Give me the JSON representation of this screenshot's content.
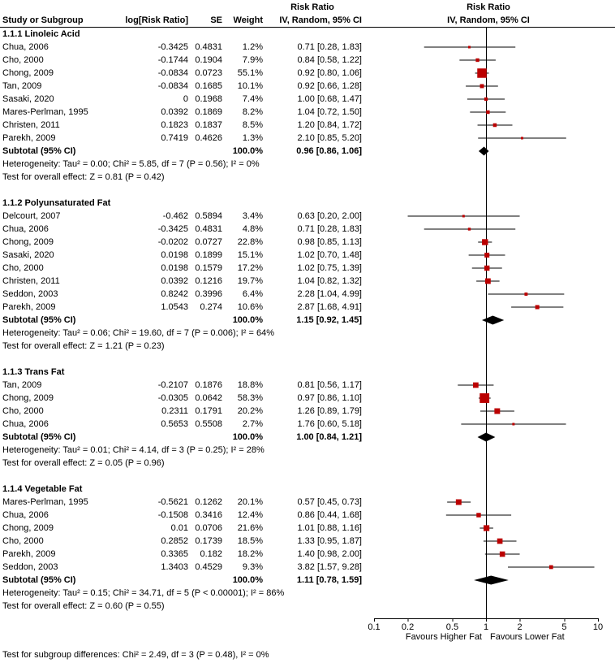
{
  "header": {
    "ci_title": "Risk Ratio",
    "plot_title": "Risk Ratio",
    "study": "Study or Subgroup",
    "log_rr": "log[Risk Ratio]",
    "se": "SE",
    "weight": "Weight",
    "ci_method": "IV, Random, 95% CI",
    "plot_method": "IV, Random, 95% CI"
  },
  "colors": {
    "marker": "#bb0000",
    "diamond": "#000000",
    "line": "#000000",
    "background": "#ffffff"
  },
  "chart_data": {
    "type": "forest",
    "x_scale": "log10",
    "xlim": [
      0.1,
      10
    ],
    "x_ticks": [
      0.1,
      0.2,
      0.5,
      1,
      2,
      5,
      10
    ],
    "x_tick_labels": [
      "0.1",
      "0.2",
      "0.5",
      "1",
      "2",
      "5",
      "10"
    ],
    "favours_left": "Favours Higher Fat",
    "favours_right": "Favours Lower Fat",
    "subgroup_test": "Test for subgroup differences: Chi² = 2.49, df = 3 (P = 0.48), I² = 0%",
    "sections": [
      {
        "title": "1.1.1 Linoleic Acid",
        "studies": [
          {
            "name": "Chua, 2006",
            "log_rr": "-0.3425",
            "se": "0.4831",
            "weight": "1.2%",
            "weight_pct": 1.2,
            "rr": 0.71,
            "lo": 0.28,
            "hi": 1.83,
            "ci_text": "0.71 [0.28, 1.83]"
          },
          {
            "name": "Cho, 2000",
            "log_rr": "-0.1744",
            "se": "0.1904",
            "weight": "7.9%",
            "weight_pct": 7.9,
            "rr": 0.84,
            "lo": 0.58,
            "hi": 1.22,
            "ci_text": "0.84 [0.58, 1.22]"
          },
          {
            "name": "Chong, 2009",
            "log_rr": "-0.0834",
            "se": "0.0723",
            "weight": "55.1%",
            "weight_pct": 55.1,
            "rr": 0.92,
            "lo": 0.8,
            "hi": 1.06,
            "ci_text": "0.92 [0.80, 1.06]"
          },
          {
            "name": "Tan, 2009",
            "log_rr": "-0.0834",
            "se": "0.1685",
            "weight": "10.1%",
            "weight_pct": 10.1,
            "rr": 0.92,
            "lo": 0.66,
            "hi": 1.28,
            "ci_text": "0.92 [0.66, 1.28]"
          },
          {
            "name": "Sasaki, 2020",
            "log_rr": "0",
            "se": "0.1968",
            "weight": "7.4%",
            "weight_pct": 7.4,
            "rr": 1.0,
            "lo": 0.68,
            "hi": 1.47,
            "ci_text": "1.00 [0.68, 1.47]"
          },
          {
            "name": "Mares-Perlman, 1995",
            "log_rr": "0.0392",
            "se": "0.1869",
            "weight": "8.2%",
            "weight_pct": 8.2,
            "rr": 1.04,
            "lo": 0.72,
            "hi": 1.5,
            "ci_text": "1.04 [0.72, 1.50]"
          },
          {
            "name": "Christen, 2011",
            "log_rr": "0.1823",
            "se": "0.1837",
            "weight": "8.5%",
            "weight_pct": 8.5,
            "rr": 1.2,
            "lo": 0.84,
            "hi": 1.72,
            "ci_text": "1.20 [0.84, 1.72]"
          },
          {
            "name": "Parekh, 2009",
            "log_rr": "0.7419",
            "se": "0.4626",
            "weight": "1.3%",
            "weight_pct": 1.3,
            "rr": 2.1,
            "lo": 0.85,
            "hi": 5.2,
            "ci_text": "2.10 [0.85, 5.20]"
          }
        ],
        "subtotal": {
          "label": "Subtotal (95% CI)",
          "weight": "100.0%",
          "rr": 0.96,
          "lo": 0.86,
          "hi": 1.06,
          "ci_text": "0.96 [0.86, 1.06]"
        },
        "heterogeneity": "Heterogeneity: Tau² = 0.00; Chi² = 5.85, df = 7 (P = 0.56); I² = 0%",
        "overall_effect": "Test for overall effect: Z = 0.81 (P = 0.42)"
      },
      {
        "title": "1.1.2 Polyunsaturated Fat",
        "studies": [
          {
            "name": "Delcourt, 2007",
            "log_rr": "-0.462",
            "se": "0.5894",
            "weight": "3.4%",
            "weight_pct": 3.4,
            "rr": 0.63,
            "lo": 0.2,
            "hi": 2.0,
            "ci_text": "0.63 [0.20, 2.00]"
          },
          {
            "name": "Chua, 2006",
            "log_rr": "-0.3425",
            "se": "0.4831",
            "weight": "4.8%",
            "weight_pct": 4.8,
            "rr": 0.71,
            "lo": 0.28,
            "hi": 1.83,
            "ci_text": "0.71 [0.28, 1.83]"
          },
          {
            "name": "Chong, 2009",
            "log_rr": "-0.0202",
            "se": "0.0727",
            "weight": "22.8%",
            "weight_pct": 22.8,
            "rr": 0.98,
            "lo": 0.85,
            "hi": 1.13,
            "ci_text": "0.98 [0.85, 1.13]"
          },
          {
            "name": "Sasaki, 2020",
            "log_rr": "0.0198",
            "se": "0.1899",
            "weight": "15.1%",
            "weight_pct": 15.1,
            "rr": 1.02,
            "lo": 0.7,
            "hi": 1.48,
            "ci_text": "1.02 [0.70, 1.48]"
          },
          {
            "name": "Cho, 2000",
            "log_rr": "0.0198",
            "se": "0.1579",
            "weight": "17.2%",
            "weight_pct": 17.2,
            "rr": 1.02,
            "lo": 0.75,
            "hi": 1.39,
            "ci_text": "1.02 [0.75, 1.39]"
          },
          {
            "name": "Christen, 2011",
            "log_rr": "0.0392",
            "se": "0.1216",
            "weight": "19.7%",
            "weight_pct": 19.7,
            "rr": 1.04,
            "lo": 0.82,
            "hi": 1.32,
            "ci_text": "1.04 [0.82, 1.32]"
          },
          {
            "name": "Seddon, 2003",
            "log_rr": "0.8242",
            "se": "0.3996",
            "weight": "6.4%",
            "weight_pct": 6.4,
            "rr": 2.28,
            "lo": 1.04,
            "hi": 4.99,
            "ci_text": "2.28 [1.04, 4.99]"
          },
          {
            "name": "Parekh, 2009",
            "log_rr": "1.0543",
            "se": "0.274",
            "weight": "10.6%",
            "weight_pct": 10.6,
            "rr": 2.87,
            "lo": 1.68,
            "hi": 4.91,
            "ci_text": "2.87 [1.68, 4.91]"
          }
        ],
        "subtotal": {
          "label": "Subtotal (95% CI)",
          "weight": "100.0%",
          "rr": 1.15,
          "lo": 0.92,
          "hi": 1.45,
          "ci_text": "1.15 [0.92, 1.45]"
        },
        "heterogeneity": "Heterogeneity: Tau² = 0.06; Chi² = 19.60, df = 7 (P = 0.006); I² = 64%",
        "overall_effect": "Test for overall effect: Z = 1.21 (P = 0.23)"
      },
      {
        "title": "1.1.3 Trans Fat",
        "studies": [
          {
            "name": "Tan, 2009",
            "log_rr": "-0.2107",
            "se": "0.1876",
            "weight": "18.8%",
            "weight_pct": 18.8,
            "rr": 0.81,
            "lo": 0.56,
            "hi": 1.17,
            "ci_text": "0.81 [0.56, 1.17]"
          },
          {
            "name": "Chong, 2009",
            "log_rr": "-0.0305",
            "se": "0.0642",
            "weight": "58.3%",
            "weight_pct": 58.3,
            "rr": 0.97,
            "lo": 0.86,
            "hi": 1.1,
            "ci_text": "0.97 [0.86, 1.10]"
          },
          {
            "name": "Cho, 2000",
            "log_rr": "0.2311",
            "se": "0.1791",
            "weight": "20.2%",
            "weight_pct": 20.2,
            "rr": 1.26,
            "lo": 0.89,
            "hi": 1.79,
            "ci_text": "1.26 [0.89, 1.79]"
          },
          {
            "name": "Chua, 2006",
            "log_rr": "0.5653",
            "se": "0.5508",
            "weight": "2.7%",
            "weight_pct": 2.7,
            "rr": 1.76,
            "lo": 0.6,
            "hi": 5.18,
            "ci_text": "1.76 [0.60, 5.18]"
          }
        ],
        "subtotal": {
          "label": "Subtotal (95% CI)",
          "weight": "100.0%",
          "rr": 1.0,
          "lo": 0.84,
          "hi": 1.21,
          "ci_text": "1.00 [0.84, 1.21]"
        },
        "heterogeneity": "Heterogeneity: Tau² = 0.01; Chi² = 4.14, df = 3 (P = 0.25); I² = 28%",
        "overall_effect": "Test for overall effect: Z = 0.05 (P = 0.96)"
      },
      {
        "title": "1.1.4 Vegetable Fat",
        "studies": [
          {
            "name": "Mares-Perlman, 1995",
            "log_rr": "-0.5621",
            "se": "0.1262",
            "weight": "20.1%",
            "weight_pct": 20.1,
            "rr": 0.57,
            "lo": 0.45,
            "hi": 0.73,
            "ci_text": "0.57 [0.45, 0.73]"
          },
          {
            "name": "Chua, 2006",
            "log_rr": "-0.1508",
            "se": "0.3416",
            "weight": "12.4%",
            "weight_pct": 12.4,
            "rr": 0.86,
            "lo": 0.44,
            "hi": 1.68,
            "ci_text": "0.86 [0.44, 1.68]"
          },
          {
            "name": "Chong, 2009",
            "log_rr": "0.01",
            "se": "0.0706",
            "weight": "21.6%",
            "weight_pct": 21.6,
            "rr": 1.01,
            "lo": 0.88,
            "hi": 1.16,
            "ci_text": "1.01 [0.88, 1.16]"
          },
          {
            "name": "Cho, 2000",
            "log_rr": "0.2852",
            "se": "0.1739",
            "weight": "18.5%",
            "weight_pct": 18.5,
            "rr": 1.33,
            "lo": 0.95,
            "hi": 1.87,
            "ci_text": "1.33 [0.95, 1.87]"
          },
          {
            "name": "Parekh, 2009",
            "log_rr": "0.3365",
            "se": "0.182",
            "weight": "18.2%",
            "weight_pct": 18.2,
            "rr": 1.4,
            "lo": 0.98,
            "hi": 2.0,
            "ci_text": "1.40 [0.98, 2.00]"
          },
          {
            "name": "Seddon, 2003",
            "log_rr": "1.3403",
            "se": "0.4529",
            "weight": "9.3%",
            "weight_pct": 9.3,
            "rr": 3.82,
            "lo": 1.57,
            "hi": 9.28,
            "ci_text": "3.82 [1.57, 9.28]"
          }
        ],
        "subtotal": {
          "label": "Subtotal (95% CI)",
          "weight": "100.0%",
          "rr": 1.11,
          "lo": 0.78,
          "hi": 1.59,
          "ci_text": "1.11 [0.78, 1.59]"
        },
        "heterogeneity": "Heterogeneity: Tau² = 0.15; Chi² = 34.71, df = 5 (P < 0.00001); I² = 86%",
        "overall_effect": "Test for overall effect: Z = 0.60 (P = 0.55)"
      }
    ]
  }
}
